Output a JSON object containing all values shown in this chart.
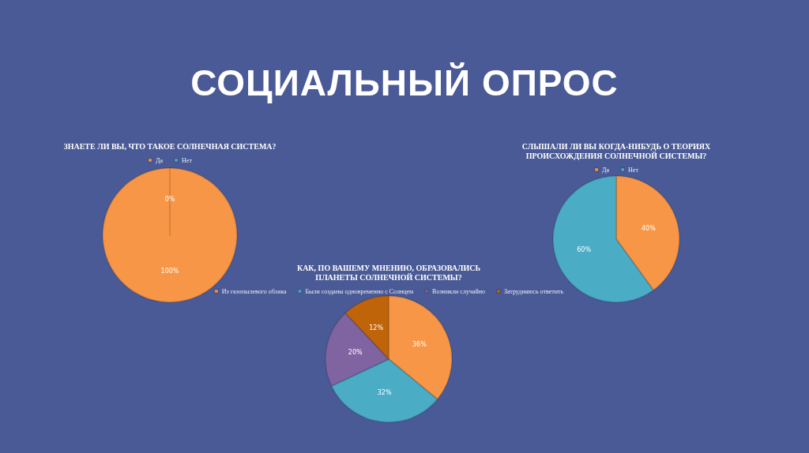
{
  "chart_data": [
    {
      "type": "other",
      "title": "СОЦИАЛЬНЫЙ ОПРОС"
    },
    {
      "type": "pie",
      "title": "ЗНАЕТЕ ЛИ ВЫ, ЧТО ТАКОЕ СОЛНЕЧНАЯ СИСТЕМА?",
      "categories": [
        "Да",
        "Нет"
      ],
      "values": [
        100,
        0
      ],
      "colors": [
        "#f79646",
        "#4bacc6"
      ],
      "value_labels": [
        "100%",
        "0%"
      ],
      "legend": "top"
    },
    {
      "type": "pie",
      "title": "СЛЫШАЛИ ЛИ ВЫ КОГДА-НИБУДЬ О ТЕОРИЯХ\nПРОИСХОЖДЕНИЯ СОЛНЕЧНОЙ СИСТЕМЫ?",
      "categories": [
        "Да",
        "Нет"
      ],
      "values": [
        40,
        60
      ],
      "colors": [
        "#f79646",
        "#4bacc6"
      ],
      "value_labels": [
        "40%",
        "60%"
      ],
      "legend": "top"
    },
    {
      "type": "pie",
      "title": "КАК, ПО ВАШЕМУ МНЕНИЮ, ОБРАЗОВАЛИСЬ\nПЛАНЕТЫ СОЛНЕЧНОЙ СИСТЕМЫ?",
      "categories": [
        "Из газопылевого облака",
        "Были созданы одновременно с Солнцем",
        "Возникли случайно",
        "Затрудняюсь ответить"
      ],
      "values": [
        36,
        32,
        20,
        12
      ],
      "colors": [
        "#f79646",
        "#4bacc6",
        "#8064a2",
        "#c0640a"
      ],
      "value_labels": [
        "36%",
        "32%",
        "20%",
        "12%"
      ],
      "legend": "top"
    }
  ]
}
